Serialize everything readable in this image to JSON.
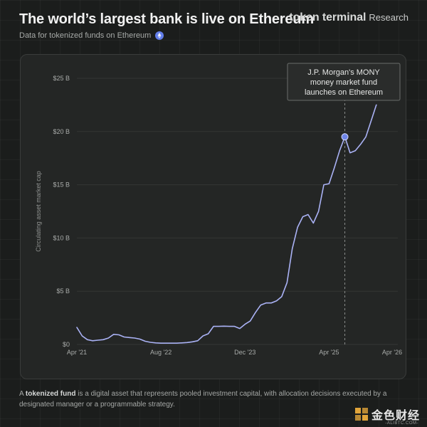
{
  "header": {
    "title": "The world’s largest bank is live on Ethereum",
    "subtitle": "Data for tokenized funds on Ethereum",
    "brand_name": "token terminal",
    "brand_tag": "Research"
  },
  "footer": {
    "prefix": "A ",
    "term": "tokenized fund",
    "text": " is a digital asset that represents pooled investment capital, with allocation decisions executed by a designated manager or a programmable strategy."
  },
  "watermark": {
    "text": "金色财经",
    "url": "-ALIBTC.COM-"
  },
  "colors": {
    "line": "#aab2f5",
    "marker": "#6f86e8",
    "background": "#1b1d1c",
    "card": "#242625"
  },
  "chart_data": {
    "type": "line",
    "title": "The world’s largest bank is live on Ethereum",
    "subtitle": "Data for tokenized funds on Ethereum",
    "xlabel": "",
    "ylabel": "Circulating asset market cap",
    "x_tick_labels": [
      "Apr '21",
      "Aug '22",
      "Dec '23",
      "Apr '25",
      "Apr '26"
    ],
    "x_tick_positions": [
      0,
      16,
      32,
      48,
      60
    ],
    "y_tick_labels": [
      "$0",
      "$5 B",
      "$10 B",
      "$15 B",
      "$20 B",
      "$25 B"
    ],
    "y_tick_values": [
      0,
      5,
      10,
      15,
      20,
      25
    ],
    "ylim": [
      0,
      25
    ],
    "xlim": [
      0,
      60
    ],
    "x_unit": "months since Apr 2021",
    "y_unit": "USD billions",
    "grid": "horizontal",
    "series": [
      {
        "values": [
          [
            0,
            1.6
          ],
          [
            1,
            0.8
          ],
          [
            2,
            0.45
          ],
          [
            3,
            0.35
          ],
          [
            4,
            0.4
          ],
          [
            5,
            0.45
          ],
          [
            6,
            0.6
          ],
          [
            7,
            0.95
          ],
          [
            8,
            0.9
          ],
          [
            9,
            0.7
          ],
          [
            10,
            0.65
          ],
          [
            11,
            0.6
          ],
          [
            12,
            0.5
          ],
          [
            13,
            0.3
          ],
          [
            14,
            0.2
          ],
          [
            15,
            0.15
          ],
          [
            16,
            0.12
          ],
          [
            17,
            0.12
          ],
          [
            18,
            0.12
          ],
          [
            19,
            0.12
          ],
          [
            20,
            0.15
          ],
          [
            21,
            0.18
          ],
          [
            22,
            0.25
          ],
          [
            23,
            0.35
          ],
          [
            24,
            0.8
          ],
          [
            25,
            1.0
          ],
          [
            26,
            1.7
          ],
          [
            27,
            1.7
          ],
          [
            28,
            1.72
          ],
          [
            29,
            1.7
          ],
          [
            30,
            1.7
          ],
          [
            31,
            1.5
          ],
          [
            32,
            1.9
          ],
          [
            33,
            2.2
          ],
          [
            34,
            3.0
          ],
          [
            35,
            3.7
          ],
          [
            36,
            3.9
          ],
          [
            37,
            3.9
          ],
          [
            38,
            4.1
          ],
          [
            39,
            4.5
          ],
          [
            40,
            5.8
          ],
          [
            41,
            9.0
          ],
          [
            42,
            11.0
          ],
          [
            43,
            12.0
          ],
          [
            44,
            12.2
          ],
          [
            45,
            11.4
          ],
          [
            46,
            12.5
          ],
          [
            47,
            15.0
          ],
          [
            48,
            15.1
          ],
          [
            49,
            16.6
          ],
          [
            50,
            18.2
          ],
          [
            51,
            19.5
          ],
          [
            52,
            18.0
          ],
          [
            53,
            18.2
          ],
          [
            54,
            18.8
          ],
          [
            55,
            19.5
          ],
          [
            56,
            21.0
          ],
          [
            57,
            22.5
          ]
        ]
      }
    ],
    "annotation": {
      "x": 51,
      "y": 19.5,
      "lines": [
        "J.P. Morgan's MONY",
        "money market fund",
        "launches on Ethereum"
      ]
    }
  }
}
